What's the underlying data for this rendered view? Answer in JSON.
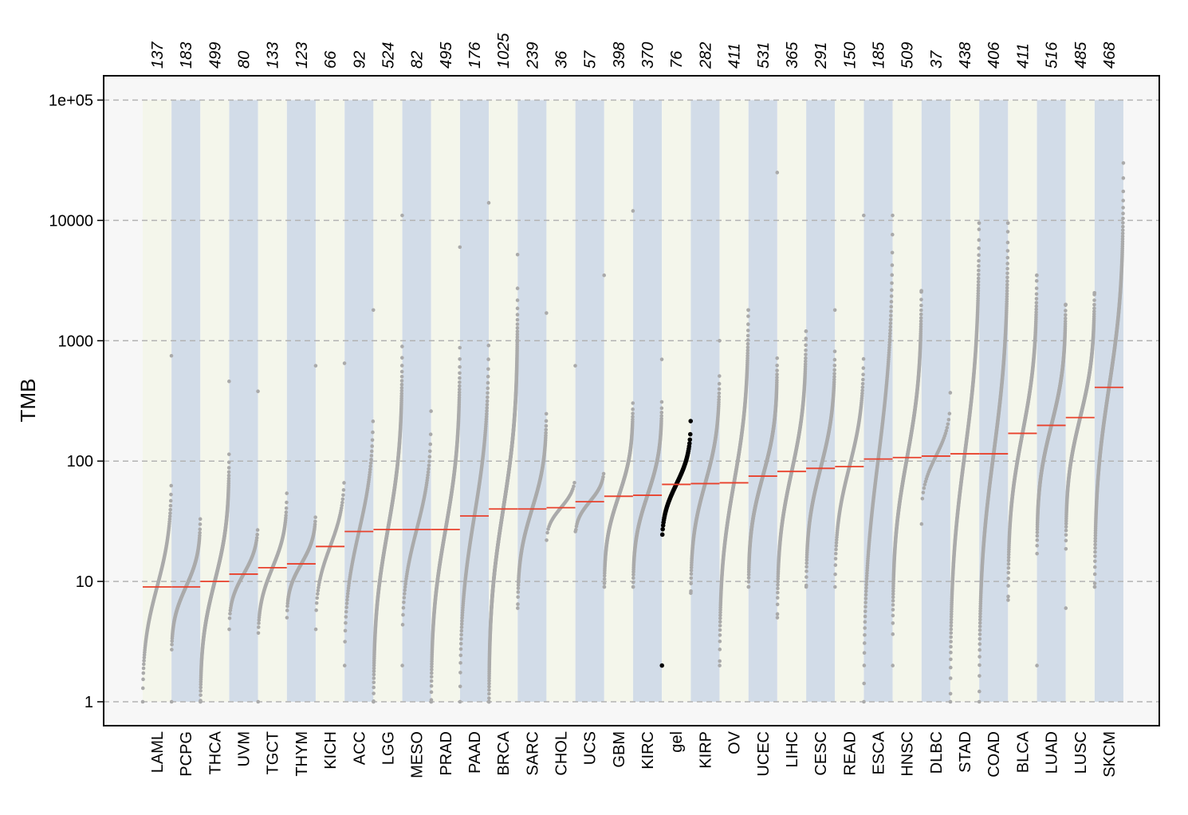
{
  "chart_data": {
    "type": "scatter",
    "title": "",
    "xlabel": "",
    "ylabel": "TMB",
    "yscale": "log",
    "ylim": [
      1,
      100000
    ],
    "yticks": [
      {
        "value": 1,
        "label": "1"
      },
      {
        "value": 10,
        "label": "10"
      },
      {
        "value": 100,
        "label": "100"
      },
      {
        "value": 1000,
        "label": "1000"
      },
      {
        "value": 10000,
        "label": "10000"
      },
      {
        "value": 100000,
        "label": "1e+05"
      }
    ],
    "grid": "horizontal dashed",
    "colors": {
      "band_light": "#f4f6eb",
      "band_blue": "#d2dce8",
      "panel_bg": "#f7f7f7",
      "points": "#aaaaaa",
      "highlight_points": "#000000",
      "median_line": "#e8412c",
      "grid": "#b3b3b3"
    },
    "highlight_category": "gel",
    "categories": [
      {
        "name": "LAML",
        "n": "137",
        "median": 9,
        "min": 1,
        "max": 750
      },
      {
        "name": "PCPG",
        "n": "183",
        "median": 9,
        "min": 1,
        "max": 33
      },
      {
        "name": "THCA",
        "n": "499",
        "median": 10,
        "min": 1,
        "max": 460
      },
      {
        "name": "UVM",
        "n": "80",
        "median": 11.5,
        "min": 4,
        "max": 380
      },
      {
        "name": "TGCT",
        "n": "133",
        "median": 13,
        "min": 1,
        "max": 54
      },
      {
        "name": "THYM",
        "n": "123",
        "median": 14,
        "min": 5,
        "max": 620
      },
      {
        "name": "KICH",
        "n": "66",
        "median": 19.5,
        "min": 4,
        "max": 650
      },
      {
        "name": "ACC",
        "n": "92",
        "median": 26,
        "min": 2,
        "max": 1800
      },
      {
        "name": "LGG",
        "n": "524",
        "median": 27,
        "min": 1,
        "max": 11000
      },
      {
        "name": "MESO",
        "n": "82",
        "median": 27,
        "min": 2,
        "max": 260
      },
      {
        "name": "PRAD",
        "n": "495",
        "median": 27,
        "min": 1,
        "max": 6000
      },
      {
        "name": "PAAD",
        "n": "176",
        "median": 35,
        "min": 1,
        "max": 14000
      },
      {
        "name": "BRCA",
        "n": "1025",
        "median": 40,
        "min": 1,
        "max": 5200
      },
      {
        "name": "SARC",
        "n": "239",
        "median": 40,
        "min": 6,
        "max": 1700
      },
      {
        "name": "CHOL",
        "n": "36",
        "median": 41,
        "min": 22,
        "max": 620
      },
      {
        "name": "UCS",
        "n": "57",
        "median": 46,
        "min": 26,
        "max": 3500
      },
      {
        "name": "GBM",
        "n": "398",
        "median": 51,
        "min": 9,
        "max": 12000
      },
      {
        "name": "KIRC",
        "n": "370",
        "median": 52,
        "min": 9,
        "max": 700
      },
      {
        "name": "gel",
        "n": "76",
        "median": 64,
        "min": 2,
        "max": 215
      },
      {
        "name": "KIRP",
        "n": "282",
        "median": 65,
        "min": 8,
        "max": 1000
      },
      {
        "name": "OV",
        "n": "411",
        "median": 66,
        "min": 2,
        "max": 1800
      },
      {
        "name": "UCEC",
        "n": "531",
        "median": 75,
        "min": 9,
        "max": 25000
      },
      {
        "name": "LIHC",
        "n": "365",
        "median": 82,
        "min": 5,
        "max": 1200
      },
      {
        "name": "CESC",
        "n": "291",
        "median": 87,
        "min": 9,
        "max": 1800
      },
      {
        "name": "READ",
        "n": "150",
        "median": 90,
        "min": 9,
        "max": 11000
      },
      {
        "name": "ESCA",
        "n": "185",
        "median": 104,
        "min": 1,
        "max": 11000
      },
      {
        "name": "HNSC",
        "n": "509",
        "median": 107,
        "min": 2,
        "max": 2600
      },
      {
        "name": "DLBC",
        "n": "37",
        "median": 110,
        "min": 30,
        "max": 370
      },
      {
        "name": "STAD",
        "n": "438",
        "median": 115,
        "min": 1,
        "max": 9500
      },
      {
        "name": "COAD",
        "n": "406",
        "median": 115,
        "min": 1,
        "max": 9500
      },
      {
        "name": "BLCA",
        "n": "411",
        "median": 170,
        "min": 7,
        "max": 3500
      },
      {
        "name": "LUAD",
        "n": "516",
        "median": 198,
        "min": 2,
        "max": 2000
      },
      {
        "name": "LUSC",
        "n": "485",
        "median": 230,
        "min": 6,
        "max": 2500
      },
      {
        "name": "SKCM",
        "n": "468",
        "median": 410,
        "min": 9,
        "max": 30000
      }
    ]
  }
}
